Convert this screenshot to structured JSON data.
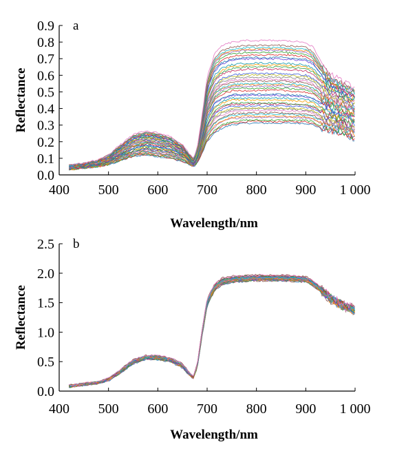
{
  "figure": {
    "spectra_count": 40,
    "palette": [
      "#1f77b4",
      "#d62728",
      "#2ca02c",
      "#9467bd",
      "#ff7f0e",
      "#17becf",
      "#8c564b",
      "#e377c2",
      "#7f7f7f",
      "#bcbd22",
      "#3b5bdb",
      "#c2255c",
      "#2f9e44",
      "#f59f00",
      "#1098ad",
      "#6741d9"
    ]
  },
  "chart_data": [
    {
      "id": "a",
      "type": "line",
      "panel_label": "a",
      "xlabel": "Wavelength/nm",
      "ylabel": "Reflectance",
      "xlim": [
        400,
        1000
      ],
      "ylim": [
        0.0,
        0.9
      ],
      "xticks": [
        400,
        500,
        600,
        700,
        800,
        900,
        1000
      ],
      "xtick_labels": [
        "400",
        "500",
        "600",
        "700",
        "800",
        "900",
        "1 000"
      ],
      "yticks": [
        0.0,
        0.1,
        0.2,
        0.3,
        0.4,
        0.5,
        0.6,
        0.7,
        0.8,
        0.9
      ],
      "ytick_labels": [
        "0.0",
        "0.1",
        "0.2",
        "0.3",
        "0.4",
        "0.5",
        "0.6",
        "0.7",
        "0.8",
        "0.9"
      ],
      "grid": false,
      "legend": "none",
      "x": [
        420,
        450,
        480,
        500,
        520,
        550,
        575,
        600,
        625,
        650,
        665,
        672,
        680,
        690,
        700,
        715,
        730,
        750,
        780,
        800,
        850,
        900,
        915,
        930,
        950,
        970,
        985,
        1000
      ],
      "representative_series": [
        {
          "values": [
            0.03,
            0.04,
            0.05,
            0.06,
            0.08,
            0.11,
            0.12,
            0.11,
            0.1,
            0.08,
            0.06,
            0.05,
            0.07,
            0.13,
            0.2,
            0.25,
            0.28,
            0.3,
            0.31,
            0.31,
            0.31,
            0.31,
            0.3,
            0.28,
            0.26,
            0.25,
            0.23,
            0.22
          ]
        },
        {
          "values": [
            0.04,
            0.05,
            0.06,
            0.08,
            0.11,
            0.15,
            0.17,
            0.16,
            0.15,
            0.12,
            0.08,
            0.07,
            0.1,
            0.2,
            0.32,
            0.4,
            0.43,
            0.45,
            0.45,
            0.45,
            0.45,
            0.44,
            0.43,
            0.4,
            0.37,
            0.35,
            0.33,
            0.32
          ]
        },
        {
          "values": [
            0.05,
            0.06,
            0.08,
            0.1,
            0.14,
            0.2,
            0.22,
            0.21,
            0.19,
            0.15,
            0.1,
            0.08,
            0.13,
            0.28,
            0.45,
            0.55,
            0.59,
            0.61,
            0.62,
            0.62,
            0.62,
            0.61,
            0.59,
            0.55,
            0.5,
            0.47,
            0.45,
            0.43
          ]
        },
        {
          "values": [
            0.06,
            0.07,
            0.09,
            0.12,
            0.17,
            0.24,
            0.26,
            0.25,
            0.23,
            0.18,
            0.12,
            0.1,
            0.16,
            0.36,
            0.58,
            0.72,
            0.77,
            0.79,
            0.8,
            0.8,
            0.8,
            0.79,
            0.76,
            0.68,
            0.6,
            0.56,
            0.54,
            0.52
          ]
        }
      ]
    },
    {
      "id": "b",
      "type": "line",
      "panel_label": "b",
      "xlabel": "Wavelength/nm",
      "ylabel": "Reflectance",
      "xlim": [
        400,
        1000
      ],
      "ylim": [
        0.0,
        2.5
      ],
      "xticks": [
        400,
        500,
        600,
        700,
        800,
        900,
        1000
      ],
      "xtick_labels": [
        "400",
        "500",
        "600",
        "700",
        "800",
        "900",
        "1 000"
      ],
      "yticks": [
        0.0,
        0.5,
        1.0,
        1.5,
        2.0,
        2.5
      ],
      "ytick_labels": [
        "0.0",
        "0.5",
        "1.0",
        "1.5",
        "2.0",
        "2.5"
      ],
      "grid": false,
      "legend": "none",
      "x": [
        420,
        450,
        480,
        500,
        520,
        550,
        575,
        600,
        625,
        650,
        665,
        672,
        680,
        690,
        700,
        715,
        730,
        750,
        780,
        800,
        850,
        900,
        915,
        930,
        950,
        970,
        985,
        1000
      ],
      "representative_series": [
        {
          "values": [
            0.07,
            0.1,
            0.13,
            0.18,
            0.28,
            0.47,
            0.54,
            0.54,
            0.5,
            0.4,
            0.26,
            0.22,
            0.4,
            0.95,
            1.45,
            1.72,
            1.82,
            1.86,
            1.88,
            1.89,
            1.89,
            1.87,
            1.8,
            1.7,
            1.55,
            1.45,
            1.4,
            1.35
          ]
        },
        {
          "values": [
            0.1,
            0.13,
            0.16,
            0.22,
            0.33,
            0.53,
            0.6,
            0.6,
            0.56,
            0.46,
            0.3,
            0.25,
            0.45,
            1.05,
            1.55,
            1.8,
            1.9,
            1.93,
            1.95,
            1.95,
            1.95,
            1.93,
            1.86,
            1.75,
            1.6,
            1.5,
            1.45,
            1.4
          ]
        }
      ]
    }
  ]
}
